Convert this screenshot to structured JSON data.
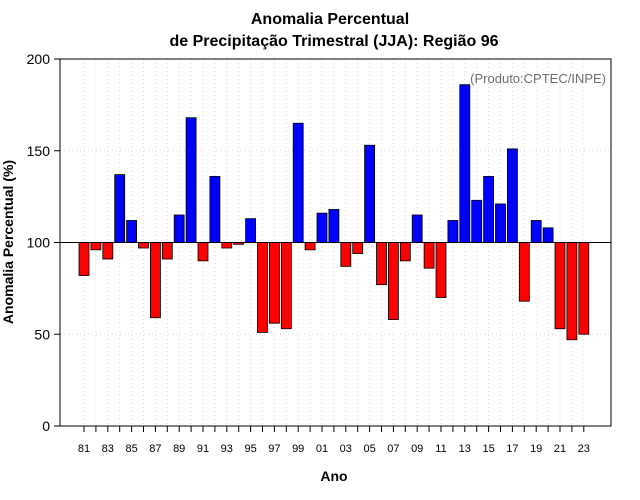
{
  "chart_data": {
    "type": "bar",
    "title_line1": "Anomalia Percentual",
    "title_line2": "de Precipitação Trimestral (JJA): Região 96",
    "xlabel": "Ano",
    "ylabel": "Anomalia Percentual (%)",
    "annotation": "(Produto:CPTEC/INPE)",
    "ylim": [
      0,
      200
    ],
    "yticks": [
      0,
      50,
      100,
      150,
      200
    ],
    "baseline": 100,
    "grid": true,
    "colors": {
      "above": "#0000ff",
      "below": "#ff0000",
      "edge": "#000000",
      "grid": "#d9d9d9"
    },
    "categories": [
      "81",
      "82",
      "83",
      "84",
      "85",
      "86",
      "87",
      "88",
      "89",
      "90",
      "91",
      "92",
      "93",
      "94",
      "95",
      "96",
      "97",
      "98",
      "99",
      "00",
      "01",
      "02",
      "03",
      "04",
      "05",
      "06",
      "07",
      "08",
      "09",
      "10",
      "11",
      "12",
      "13",
      "14",
      "15",
      "16",
      "17",
      "18",
      "19",
      "20",
      "21",
      "22",
      "23"
    ],
    "tick_labels": [
      "81",
      "83",
      "85",
      "87",
      "89",
      "91",
      "93",
      "95",
      "97",
      "99",
      "01",
      "03",
      "05",
      "07",
      "09",
      "11",
      "13",
      "15",
      "17",
      "19",
      "21",
      "23"
    ],
    "values": [
      82,
      96,
      91,
      137,
      112,
      97,
      59,
      91,
      115,
      168,
      90,
      136,
      97,
      99,
      113,
      51,
      56,
      53,
      165,
      96,
      116,
      118,
      87,
      94,
      153,
      77,
      58,
      90,
      115,
      86,
      70,
      112,
      186,
      123,
      136,
      121,
      151,
      68,
      112,
      108,
      53,
      47,
      50
    ]
  }
}
